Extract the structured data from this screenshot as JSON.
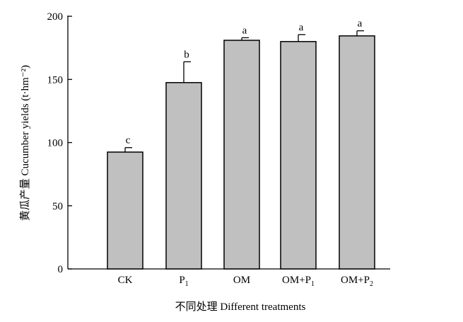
{
  "chart_data": {
    "type": "bar",
    "xlabel": "不同处理 Different treatments",
    "ylabel": "黄瓜产量 Cucumber yields (t·hm⁻²)",
    "ylim": [
      0,
      200
    ],
    "yticks": [
      0,
      50,
      100,
      150,
      200
    ],
    "grid": false,
    "categories": [
      {
        "base": "CK",
        "sub": ""
      },
      {
        "base": "P",
        "sub": "1"
      },
      {
        "base": "OM",
        "sub": ""
      },
      {
        "base": "OM+P",
        "sub": "1"
      },
      {
        "base": "OM+P",
        "sub": "2"
      }
    ],
    "values": [
      92.5,
      147.5,
      181,
      180,
      184.5
    ],
    "errors": [
      3.5,
      16.5,
      2,
      5.5,
      4
    ],
    "sig_labels": [
      "c",
      "b",
      "a",
      "a",
      "a"
    ],
    "colors": {
      "bar_fill": "#c0c0c0",
      "bar_stroke": "#000000",
      "axis": "#000000"
    }
  }
}
